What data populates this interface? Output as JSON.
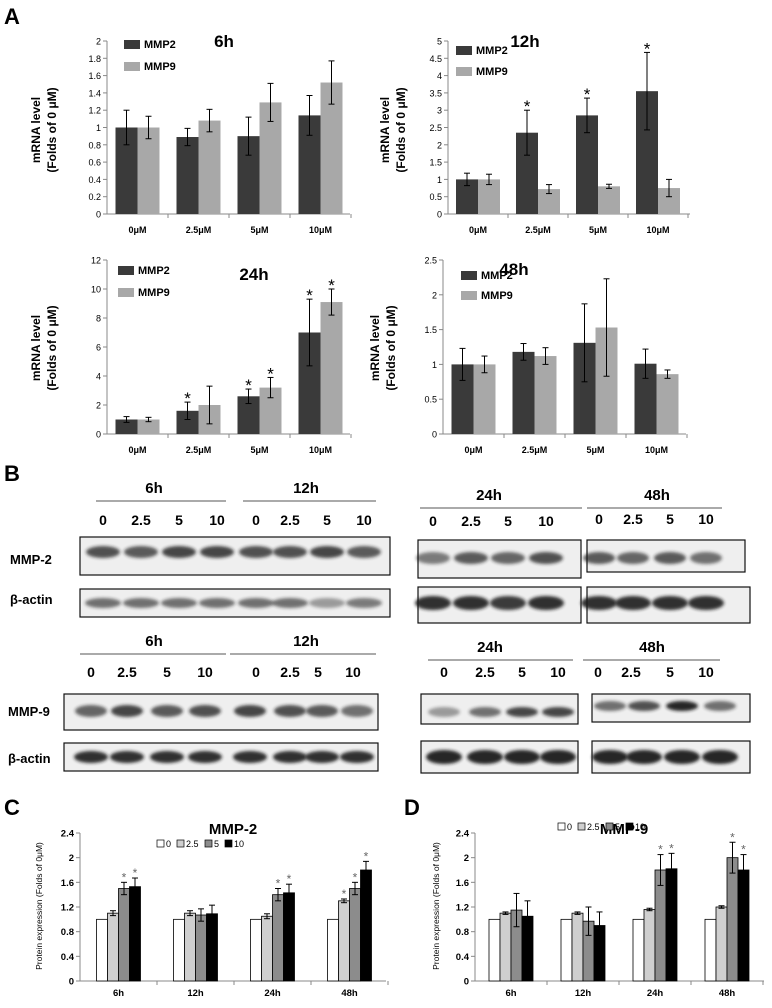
{
  "panel_labels": {
    "A": "A",
    "B": "B",
    "C": "C",
    "D": "D"
  },
  "colors": {
    "mmp2": "#3a3a3a",
    "mmp9": "#a8a8a8",
    "protein_0": "#ffffff",
    "protein_2_5": "#cfcfcf",
    "protein_5": "#8c8c8c",
    "protein_10": "#000000",
    "axis": "#888888"
  },
  "chart_data": [
    {
      "id": "A-6h",
      "type": "bar",
      "title": "6h",
      "ylabel_line1": "mRNA level",
      "ylabel_line2": "(Folds of 0 μM)",
      "categories": [
        "0μM",
        "2.5μM",
        "5μM",
        "10μM"
      ],
      "ylim": [
        0,
        2
      ],
      "yticks": [
        0,
        0.2,
        0.4,
        0.6,
        0.8,
        1,
        1.2,
        1.4,
        1.6,
        1.8,
        2
      ],
      "series": [
        {
          "name": "MMP2",
          "values": [
            1.0,
            0.89,
            0.9,
            1.14
          ],
          "errors": [
            0.2,
            0.1,
            0.22,
            0.23
          ],
          "sig": [
            false,
            false,
            false,
            false
          ]
        },
        {
          "name": "MMP9",
          "values": [
            1.0,
            1.08,
            1.29,
            1.52
          ],
          "errors": [
            0.13,
            0.13,
            0.22,
            0.25
          ],
          "sig": [
            false,
            false,
            false,
            false
          ]
        }
      ]
    },
    {
      "id": "A-12h",
      "type": "bar",
      "title": "12h",
      "ylabel_line1": "mRNA level",
      "ylabel_line2": "(Folds of 0 μM)",
      "categories": [
        "0μM",
        "2.5μM",
        "5μM",
        "10μM"
      ],
      "ylim": [
        0,
        5
      ],
      "yticks": [
        0,
        0.5,
        1,
        1.5,
        2,
        2.5,
        3,
        3.5,
        4,
        4.5,
        5
      ],
      "series": [
        {
          "name": "MMP2",
          "values": [
            1.0,
            2.35,
            2.85,
            3.55
          ],
          "errors": [
            0.18,
            0.65,
            0.5,
            1.12
          ],
          "sig": [
            false,
            true,
            true,
            true
          ]
        },
        {
          "name": "MMP9",
          "values": [
            1.0,
            0.72,
            0.8,
            0.75
          ],
          "errors": [
            0.15,
            0.13,
            0.06,
            0.25
          ],
          "sig": [
            false,
            false,
            false,
            false
          ]
        }
      ]
    },
    {
      "id": "A-24h",
      "type": "bar",
      "title": "24h",
      "ylabel_line1": "mRNA level",
      "ylabel_line2": "(Folds of 0 μM)",
      "categories": [
        "0μM",
        "2.5μM",
        "5μM",
        "10μM"
      ],
      "ylim": [
        0,
        12
      ],
      "yticks": [
        0,
        2,
        4,
        6,
        8,
        10,
        12
      ],
      "series": [
        {
          "name": "MMP2",
          "values": [
            1.0,
            1.6,
            2.6,
            7.0
          ],
          "errors": [
            0.2,
            0.6,
            0.5,
            2.3
          ],
          "sig": [
            false,
            true,
            true,
            true
          ]
        },
        {
          "name": "MMP9",
          "values": [
            1.0,
            2.0,
            3.2,
            9.1
          ],
          "errors": [
            0.15,
            1.3,
            0.7,
            0.9
          ],
          "sig": [
            false,
            false,
            true,
            true
          ]
        }
      ]
    },
    {
      "id": "A-48h",
      "type": "bar",
      "title": "48h",
      "ylabel_line1": "mRNA level",
      "ylabel_line2": "(Folds of 0 μM)",
      "categories": [
        "0μM",
        "2.5μM",
        "5μM",
        "10μM"
      ],
      "ylim": [
        0,
        2.5
      ],
      "yticks": [
        0,
        0.5,
        1,
        1.5,
        2,
        2.5
      ],
      "series": [
        {
          "name": "MMP2",
          "values": [
            1.0,
            1.18,
            1.31,
            1.01
          ],
          "errors": [
            0.23,
            0.12,
            0.56,
            0.21
          ],
          "sig": [
            false,
            false,
            false,
            false
          ]
        },
        {
          "name": "MMP9",
          "values": [
            1.0,
            1.12,
            1.53,
            0.86
          ],
          "errors": [
            0.12,
            0.12,
            0.7,
            0.06
          ],
          "sig": [
            false,
            false,
            false,
            false
          ]
        }
      ]
    },
    {
      "id": "C",
      "type": "bar",
      "title": "MMP-2",
      "ylabel_line1": "Protein expression (Folds of 0μM)",
      "categories": [
        "6h",
        "12h",
        "24h",
        "48h"
      ],
      "ylim": [
        0,
        2.4
      ],
      "yticks": [
        0,
        0.4,
        0.8,
        1.2,
        1.6,
        2,
        2.4
      ],
      "series": [
        {
          "name": "0",
          "values": [
            1.0,
            1.0,
            1.0,
            1.0
          ],
          "errors": [
            0,
            0,
            0,
            0
          ],
          "sig": [
            false,
            false,
            false,
            false
          ]
        },
        {
          "name": "2.5",
          "values": [
            1.1,
            1.1,
            1.05,
            1.3
          ],
          "errors": [
            0.04,
            0.04,
            0.04,
            0.03
          ],
          "sig": [
            false,
            false,
            false,
            true
          ]
        },
        {
          "name": "5",
          "values": [
            1.5,
            1.07,
            1.4,
            1.5
          ],
          "errors": [
            0.1,
            0.1,
            0.1,
            0.1
          ],
          "sig": [
            true,
            false,
            true,
            true
          ]
        },
        {
          "name": "10",
          "values": [
            1.53,
            1.09,
            1.43,
            1.8
          ],
          "errors": [
            0.14,
            0.14,
            0.14,
            0.14
          ],
          "sig": [
            true,
            false,
            true,
            true
          ]
        }
      ]
    },
    {
      "id": "D",
      "type": "bar",
      "title": "MMP-9",
      "ylabel_line1": "Protein expression (Folds of 0μM)",
      "categories": [
        "6h",
        "12h",
        "24h",
        "48h"
      ],
      "ylim": [
        0,
        2.4
      ],
      "yticks": [
        0,
        0.4,
        0.8,
        1.2,
        1.6,
        2,
        2.4
      ],
      "series": [
        {
          "name": "0",
          "values": [
            1.0,
            1.0,
            1.0,
            1.0
          ],
          "errors": [
            0,
            0,
            0,
            0
          ],
          "sig": [
            false,
            false,
            false,
            false
          ]
        },
        {
          "name": "2.5",
          "values": [
            1.1,
            1.1,
            1.16,
            1.2
          ],
          "errors": [
            0.02,
            0.02,
            0.02,
            0.02
          ],
          "sig": [
            false,
            false,
            false,
            false
          ]
        },
        {
          "name": "5",
          "values": [
            1.15,
            0.97,
            1.8,
            2.0
          ],
          "errors": [
            0.27,
            0.23,
            0.25,
            0.25
          ],
          "sig": [
            false,
            false,
            true,
            true
          ]
        },
        {
          "name": "10",
          "values": [
            1.05,
            0.9,
            1.82,
            1.8
          ],
          "errors": [
            0.25,
            0.22,
            0.25,
            0.25
          ],
          "sig": [
            false,
            false,
            true,
            true
          ]
        }
      ]
    }
  ],
  "blots": {
    "left_times": [
      "6h",
      "12h"
    ],
    "right_times": [
      "24h",
      "48h"
    ],
    "doses": [
      "0",
      "2.5",
      "5",
      "10"
    ],
    "mmp2_label": "MMP-2",
    "mmp9_label": "MMP-9",
    "actin_label": "β-actin"
  }
}
